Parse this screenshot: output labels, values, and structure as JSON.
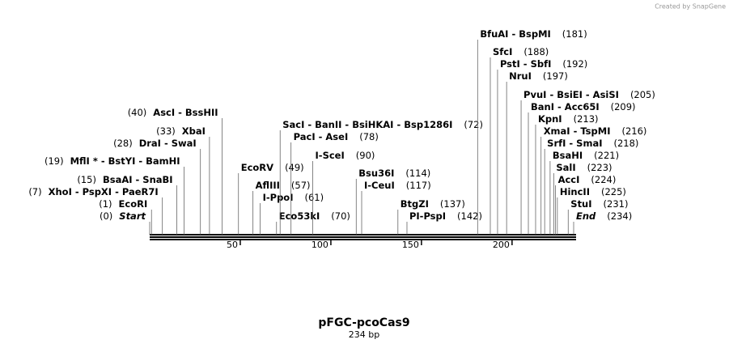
{
  "credit": "Created by SnapGene",
  "map": {
    "name": "pFGC-pcoCas9",
    "length": 234,
    "length_label": "234 bp",
    "ticks": [
      50,
      100,
      150,
      200
    ],
    "sites": [
      {
        "label": "Start",
        "position": 0,
        "position_label": "(0)",
        "italic": true
      },
      {
        "label": "EcoRI",
        "position": 1,
        "position_label": "(1)"
      },
      {
        "label": "XhoI  -  PspXI  -  PaeR7I",
        "position": 7,
        "position_label": "(7)"
      },
      {
        "label": "BsaAI  -  SnaBI",
        "position": 15,
        "position_label": "(15)"
      },
      {
        "label": "MflI *  -  BstYI  -  BamHI",
        "position": 19,
        "position_label": "(19)"
      },
      {
        "label": "DraI  -  SwaI",
        "position": 28,
        "position_label": "(28)"
      },
      {
        "label": "XbaI",
        "position": 33,
        "position_label": "(33)"
      },
      {
        "label": "AscI  -  BssHII",
        "position": 40,
        "position_label": "(40)"
      },
      {
        "label": "EcoRV",
        "position": 49,
        "position_label": "(49)"
      },
      {
        "label": "AflIII",
        "position": 57,
        "position_label": "(57)"
      },
      {
        "label": "I-PpoI",
        "position": 61,
        "position_label": "(61)"
      },
      {
        "label": "Eco53kI",
        "position": 70,
        "position_label": "(70)"
      },
      {
        "label": "SacI  -  BanII  -  BsiHKAI  -  Bsp1286I",
        "position": 72,
        "position_label": "(72)"
      },
      {
        "label": "PacI  -  AseI",
        "position": 78,
        "position_label": "(78)"
      },
      {
        "label": "I-SceI",
        "position": 90,
        "position_label": "(90)"
      },
      {
        "label": "Bsu36I",
        "position": 114,
        "position_label": "(114)"
      },
      {
        "label": "I-CeuI",
        "position": 117,
        "position_label": "(117)"
      },
      {
        "label": "BtgZI",
        "position": 137,
        "position_label": "(137)"
      },
      {
        "label": "PI-PspI",
        "position": 142,
        "position_label": "(142)"
      },
      {
        "label": "BfuAI  -  BspMI",
        "position": 181,
        "position_label": "(181)"
      },
      {
        "label": "SfcI",
        "position": 188,
        "position_label": "(188)"
      },
      {
        "label": "PstI  -  SbfI",
        "position": 192,
        "position_label": "(192)"
      },
      {
        "label": "NruI",
        "position": 197,
        "position_label": "(197)"
      },
      {
        "label": "PvuI  -  BsiEI  -  AsiSI",
        "position": 205,
        "position_label": "(205)"
      },
      {
        "label": "BanI  -  Acc65I",
        "position": 209,
        "position_label": "(209)"
      },
      {
        "label": "KpnI",
        "position": 213,
        "position_label": "(213)"
      },
      {
        "label": "XmaI  -  TspMI",
        "position": 216,
        "position_label": "(216)"
      },
      {
        "label": "SrfI  -  SmaI",
        "position": 218,
        "position_label": "(218)"
      },
      {
        "label": "BsaHI",
        "position": 221,
        "position_label": "(221)"
      },
      {
        "label": "SalI",
        "position": 223,
        "position_label": "(223)"
      },
      {
        "label": "AccI",
        "position": 224,
        "position_label": "(224)"
      },
      {
        "label": "HincII",
        "position": 225,
        "position_label": "(225)"
      },
      {
        "label": "StuI",
        "position": 231,
        "position_label": "(231)"
      },
      {
        "label": "End",
        "position": 234,
        "position_label": "(234)",
        "italic": true
      }
    ]
  }
}
